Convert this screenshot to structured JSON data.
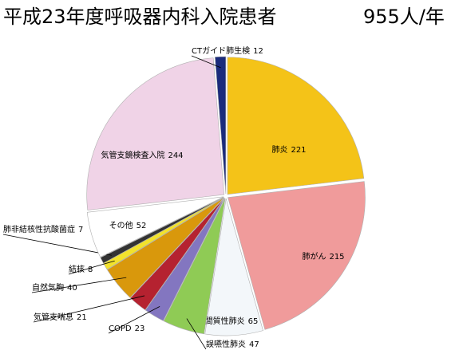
{
  "chart_data": {
    "type": "pie",
    "title": "平成23年度呼吸器内科入院患者",
    "subtitle": "955人/年",
    "categories": [
      "肺炎",
      "肺がん",
      "間質性肺炎",
      "誤嚥性肺炎",
      "COPD",
      "気管支喘息",
      "自然気胸",
      "結核",
      "肺非結核性抗酸菌症",
      "その他",
      "気管支鏡検査入院",
      "CTガイド肺生検"
    ],
    "values": [
      221,
      215,
      65,
      47,
      23,
      21,
      40,
      8,
      7,
      52,
      244,
      12
    ],
    "colors": [
      "#f4c318",
      "#f09b9b",
      "#f3f7fa",
      "#8fcb55",
      "#8376c0",
      "#b52230",
      "#d9980c",
      "#f2e22c",
      "#333333",
      "#ffffff",
      "#f0d3e7",
      "#1b2b7c"
    ]
  }
}
